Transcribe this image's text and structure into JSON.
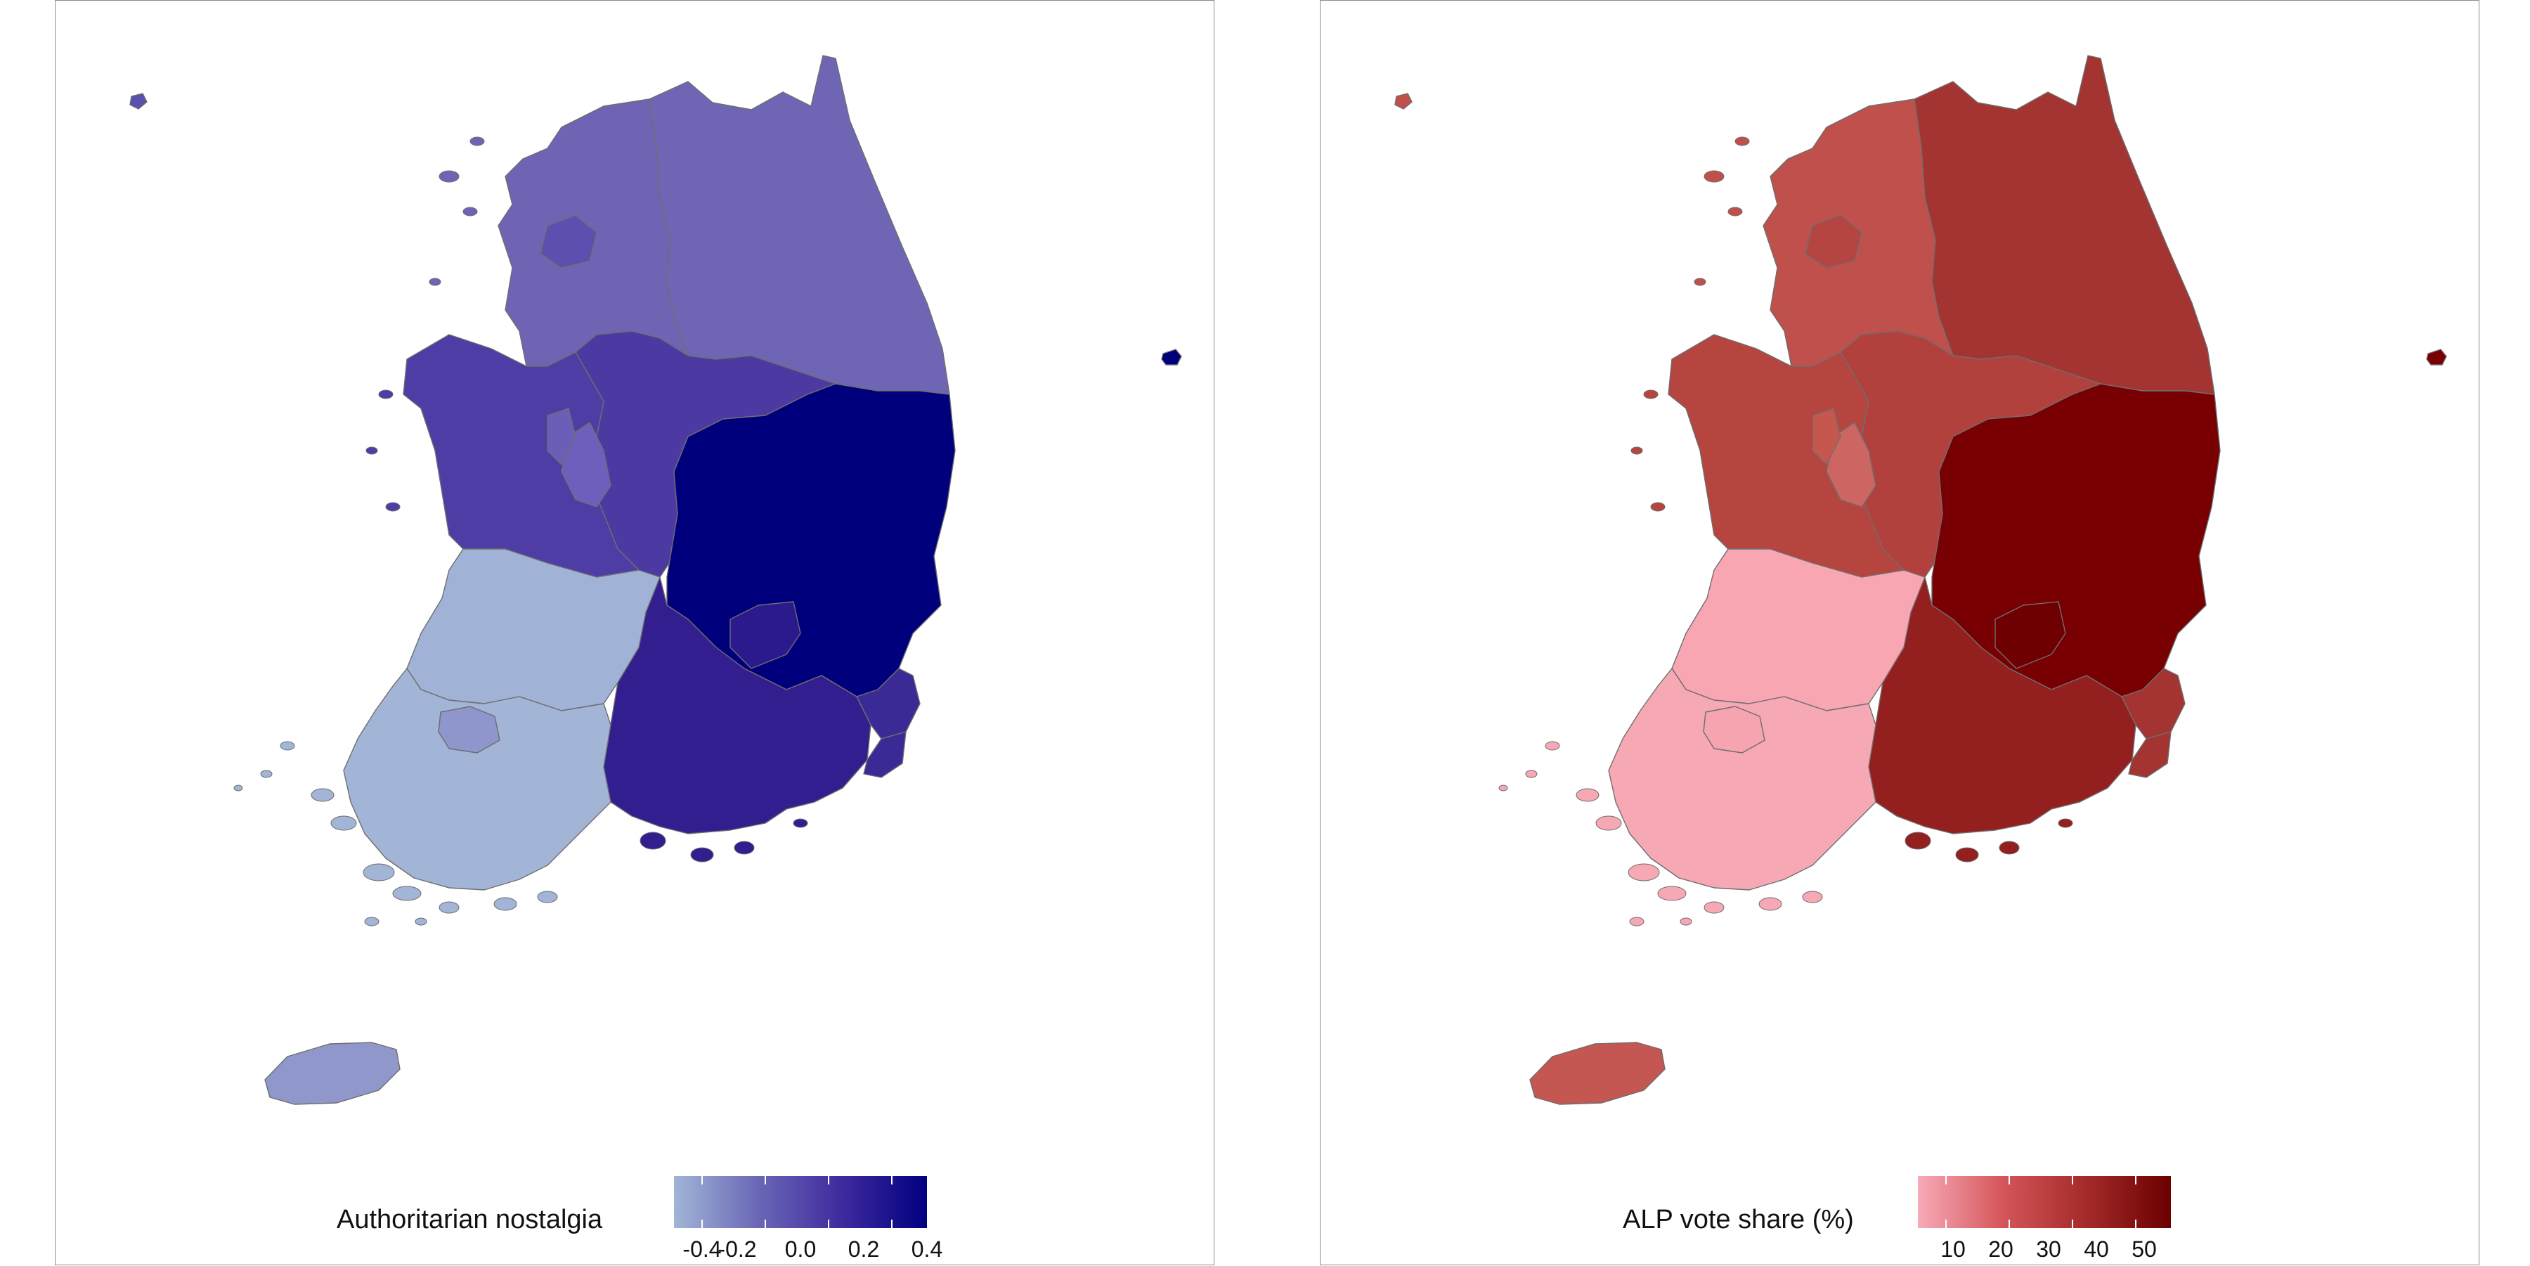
{
  "maps": [
    {
      "id": "left",
      "legend": {
        "title": "Authoritarian nostalgia",
        "gradient": [
          "#a1b5d6",
          "#6a67b6",
          "#3e2a9e",
          "#000080"
        ],
        "ticks": [
          "-0.4",
          "-0.2",
          "0.0",
          "0.2",
          "0.4"
        ]
      },
      "colors": {
        "capital": "#6f64b4",
        "capital_city": "#5c4fb0",
        "gangwon": "#6e66b4",
        "chungbuk": "#4c3aa2",
        "chungnam": "#4d3da4",
        "daejeon": "#6e5fbd",
        "sejong": "#6a5fb8",
        "gyeongbuk": "#00007c",
        "daegu": "#2a1a8e",
        "gyeongnam": "#321e8e",
        "ulsan": "#3a2a96",
        "busan": "#3a2a96",
        "jeonbuk": "#a0b3d6",
        "jeonnam": "#a2b5d6",
        "gwangju": "#8e96cc",
        "jeju": "#8f97cb",
        "ulleung": "#00007c",
        "nw_island": "#5a50b0"
      }
    },
    {
      "id": "right",
      "legend": {
        "title": "ALP vote share (%)",
        "gradient": [
          "#f8aab8",
          "#d5565a",
          "#a42a2a",
          "#6b0000"
        ],
        "ticks": [
          "10",
          "20",
          "30",
          "40",
          "50"
        ]
      },
      "colors": {
        "capital": "#c0504c",
        "capital_city": "#b54541",
        "gangwon": "#a33432",
        "chungbuk": "#b2413e",
        "chungnam": "#b6443f",
        "daejeon": "#cd6563",
        "sejong": "#c5574f",
        "gyeongbuk": "#780002",
        "daegu": "#6f0002",
        "gyeongnam": "#931f1f",
        "ulsan": "#a33432",
        "busan": "#a33432",
        "jeonbuk": "#f7a6b2",
        "jeonnam": "#f7a8b5",
        "gwangju": "#f5a4b0",
        "jeju": "#c45752",
        "ulleung": "#780002",
        "nw_island": "#c0504c"
      }
    }
  ]
}
